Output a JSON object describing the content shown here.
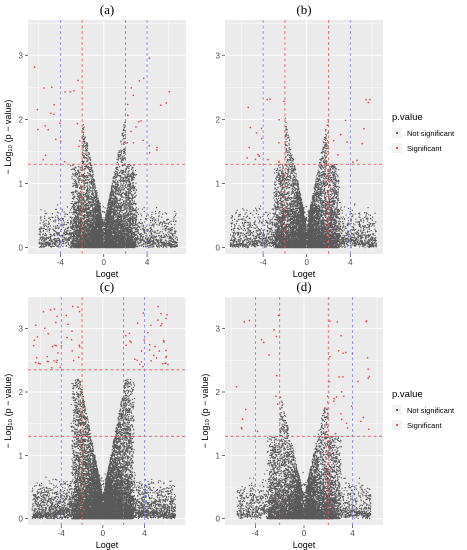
{
  "figure": {
    "colors": {
      "not_significant": "#595959",
      "significant": "#e8464a",
      "fc_threshold_inner": "#e0585a",
      "fc_threshold_outer": "#7a7ae8",
      "panel_background": "#ebebeb",
      "grid": "#ffffff"
    },
    "legend": {
      "title": "p.value",
      "items": [
        "Not significant",
        "Significant"
      ],
      "placement": "right"
    }
  },
  "chart_data": [
    {
      "type": "scatter",
      "title": "(a)",
      "xlabel": "Loget",
      "ylabel": "− Log₁₀ (p − value)",
      "x_ticks": [
        "-4",
        "0",
        "4"
      ],
      "y_ticks": [
        "0",
        "1",
        "2",
        "3"
      ],
      "xlim": [
        -7.0,
        7.6
      ],
      "ylim": [
        -0.1,
        3.55
      ],
      "grid": true,
      "legend": "none",
      "thresholds": {
        "x_inner": [
          -2,
          2
        ],
        "x_outer": [
          -4,
          4
        ],
        "y": 1.3
      },
      "series": [
        {
          "name": "Not significant",
          "n_points": 9000,
          "x_range": [
            -6.0,
            6.8
          ]
        },
        {
          "name": "Significant",
          "n_points": 44,
          "x_range": [
            -6.5,
            6.3
          ],
          "y_range": [
            1.3,
            3.1
          ]
        }
      ]
    },
    {
      "type": "scatter",
      "title": "(b)",
      "xlabel": "Loget",
      "ylabel": "",
      "x_ticks": [
        "-4",
        "0",
        "4"
      ],
      "y_ticks": [
        "0",
        "1",
        "2",
        "3"
      ],
      "xlim": [
        -7.5,
        7.0
      ],
      "ylim": [
        -0.1,
        3.55
      ],
      "grid": true,
      "legend": "none",
      "thresholds": {
        "x_inner": [
          -2,
          2
        ],
        "x_outer": [
          -4,
          4
        ],
        "y": 1.3
      },
      "series": [
        {
          "name": "Not significant",
          "n_points": 9000,
          "x_range": [
            -7.0,
            6.4
          ]
        },
        {
          "name": "Significant",
          "n_points": 30,
          "x_range": [
            -6.8,
            6.3
          ],
          "y_range": [
            1.3,
            2.3
          ]
        }
      ]
    },
    {
      "type": "scatter",
      "title": "(c)",
      "xlabel": "Loget",
      "ylabel": "− Log₁₀ (p − value)",
      "x_ticks": [
        "-4",
        "0",
        "4"
      ],
      "y_ticks": [
        "0",
        "1",
        "2",
        "3"
      ],
      "xlim": [
        -7.2,
        8.0
      ],
      "ylim": [
        -0.1,
        3.5
      ],
      "grid": true,
      "legend": "none",
      "thresholds": {
        "x_inner": [
          -2,
          2
        ],
        "x_outer": [
          -4,
          4
        ],
        "y_lines": [
          1.3,
          2.35
        ]
      },
      "series": [
        {
          "name": "Not significant",
          "n_points": 14000,
          "x_range": [
            -6.8,
            7.0
          ]
        },
        {
          "name": "Significant",
          "n_points": 80,
          "x_range": [
            -6.8,
            6.4
          ],
          "y_range": [
            2.35,
            3.35
          ]
        }
      ]
    },
    {
      "type": "scatter",
      "title": "(d)",
      "xlabel": "Loget",
      "ylabel": "− Log₁₀ (p − value)",
      "x_ticks": [
        "-4",
        "0",
        "4"
      ],
      "y_ticks": [
        "0",
        "1",
        "2",
        "3"
      ],
      "xlim": [
        -6.5,
        6.5
      ],
      "ylim": [
        -0.1,
        3.5
      ],
      "grid": true,
      "legend": "right",
      "thresholds": {
        "x_inner": [
          -2,
          2
        ],
        "x_outer": [
          -4,
          4
        ],
        "y": 1.3
      },
      "series": [
        {
          "name": "Not significant",
          "n_points": 8000,
          "x_range": [
            -5.5,
            5.5
          ]
        },
        {
          "name": "Significant",
          "n_points": 50,
          "x_range": [
            -5.6,
            5.4
          ],
          "y_range": [
            1.3,
            3.2
          ]
        }
      ]
    }
  ]
}
